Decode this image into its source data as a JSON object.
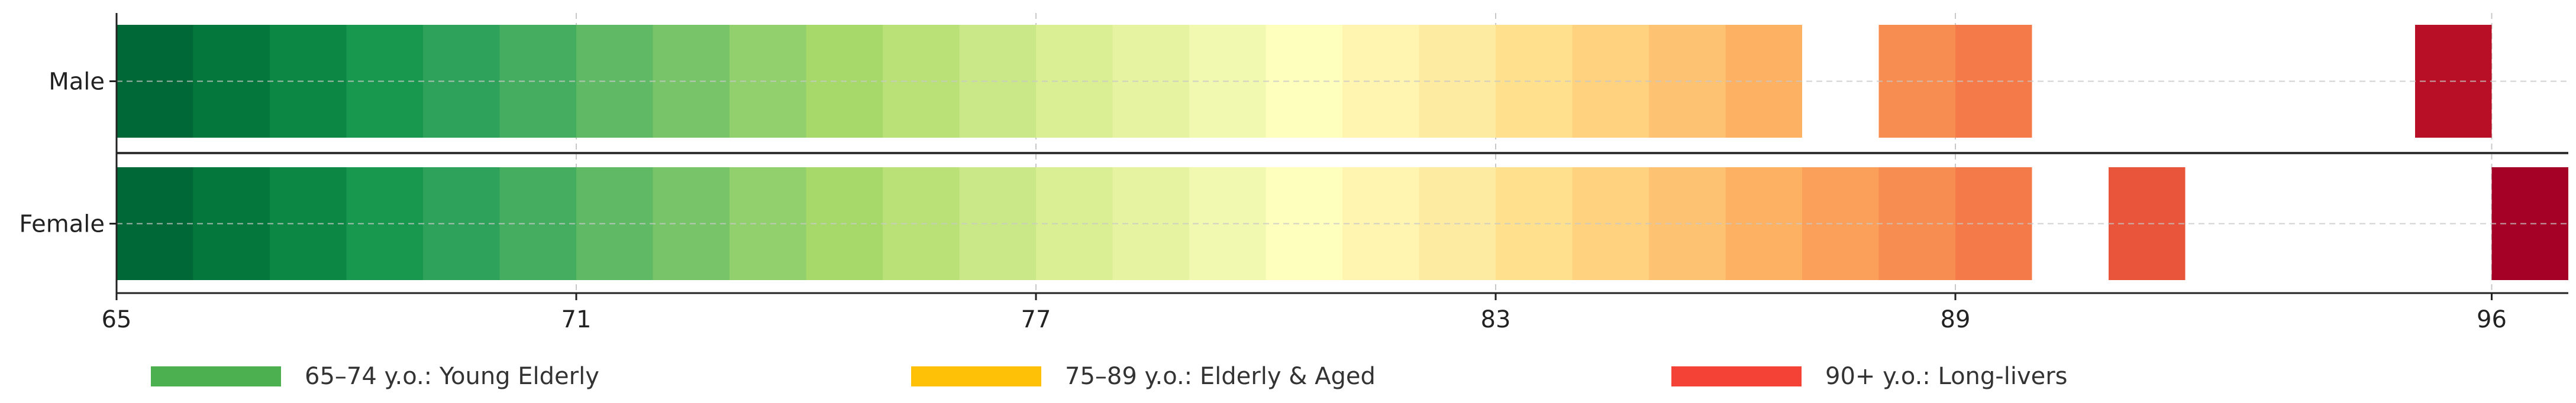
{
  "chart_data": {
    "type": "bar",
    "orientation": "horizontal",
    "title": "",
    "xlabel": "",
    "ylabel": "",
    "xlim": [
      65,
      97
    ],
    "x_ticks": [
      65,
      71,
      77,
      83,
      89,
      96
    ],
    "grid": true,
    "categories": [
      "Male",
      "Female"
    ],
    "series": [
      {
        "category": "Male",
        "segments": [
          {
            "start": 65,
            "end": 66,
            "color": "#006837"
          },
          {
            "start": 66,
            "end": 67,
            "color": "#04773d"
          },
          {
            "start": 67,
            "end": 68,
            "color": "#0c8744"
          },
          {
            "start": 68,
            "end": 69,
            "color": "#18974f"
          },
          {
            "start": 69,
            "end": 70,
            "color": "#2ea25a"
          },
          {
            "start": 70,
            "end": 71,
            "color": "#45ad60"
          },
          {
            "start": 71,
            "end": 72,
            "color": "#5fb965"
          },
          {
            "start": 72,
            "end": 73,
            "color": "#78c569"
          },
          {
            "start": 73,
            "end": 74,
            "color": "#91d06d"
          },
          {
            "start": 74,
            "end": 75,
            "color": "#a6d96a"
          },
          {
            "start": 75,
            "end": 76,
            "color": "#b9e178"
          },
          {
            "start": 76,
            "end": 77,
            "color": "#cbe888"
          },
          {
            "start": 77,
            "end": 78,
            "color": "#daee93"
          },
          {
            "start": 78,
            "end": 79,
            "color": "#e6f3a1"
          },
          {
            "start": 79,
            "end": 80,
            "color": "#f1f8b0"
          },
          {
            "start": 80,
            "end": 81,
            "color": "#fefebd"
          },
          {
            "start": 81,
            "end": 82,
            "color": "#fff5b0"
          },
          {
            "start": 82,
            "end": 83,
            "color": "#feeba2"
          },
          {
            "start": 83,
            "end": 84,
            "color": "#fee08d"
          },
          {
            "start": 84,
            "end": 85,
            "color": "#fed27f"
          },
          {
            "start": 85,
            "end": 86,
            "color": "#fdc272"
          },
          {
            "start": 86,
            "end": 87,
            "color": "#fdb163"
          },
          {
            "start": 88,
            "end": 89,
            "color": "#f88d51"
          },
          {
            "start": 89,
            "end": 90,
            "color": "#f47a49"
          },
          {
            "start": 95,
            "end": 96,
            "color": "#b80f26"
          }
        ]
      },
      {
        "category": "Female",
        "segments": [
          {
            "start": 65,
            "end": 66,
            "color": "#006837"
          },
          {
            "start": 66,
            "end": 67,
            "color": "#04773d"
          },
          {
            "start": 67,
            "end": 68,
            "color": "#0c8744"
          },
          {
            "start": 68,
            "end": 69,
            "color": "#18974f"
          },
          {
            "start": 69,
            "end": 70,
            "color": "#2ea25a"
          },
          {
            "start": 70,
            "end": 71,
            "color": "#45ad60"
          },
          {
            "start": 71,
            "end": 72,
            "color": "#5fb965"
          },
          {
            "start": 72,
            "end": 73,
            "color": "#78c569"
          },
          {
            "start": 73,
            "end": 74,
            "color": "#91d06d"
          },
          {
            "start": 74,
            "end": 75,
            "color": "#a6d96a"
          },
          {
            "start": 75,
            "end": 76,
            "color": "#b9e178"
          },
          {
            "start": 76,
            "end": 77,
            "color": "#cbe888"
          },
          {
            "start": 77,
            "end": 78,
            "color": "#daee93"
          },
          {
            "start": 78,
            "end": 79,
            "color": "#e6f3a1"
          },
          {
            "start": 79,
            "end": 80,
            "color": "#f1f8b0"
          },
          {
            "start": 80,
            "end": 81,
            "color": "#fefebd"
          },
          {
            "start": 81,
            "end": 82,
            "color": "#fff5b0"
          },
          {
            "start": 82,
            "end": 83,
            "color": "#feeba2"
          },
          {
            "start": 83,
            "end": 84,
            "color": "#fee08d"
          },
          {
            "start": 84,
            "end": 85,
            "color": "#fed27f"
          },
          {
            "start": 85,
            "end": 86,
            "color": "#fdc272"
          },
          {
            "start": 86,
            "end": 87,
            "color": "#fdb163"
          },
          {
            "start": 87,
            "end": 88,
            "color": "#fba05b"
          },
          {
            "start": 88,
            "end": 89,
            "color": "#f88d51"
          },
          {
            "start": 89,
            "end": 90,
            "color": "#f47a49"
          },
          {
            "start": 91,
            "end": 92,
            "color": "#e8553b"
          },
          {
            "start": 96,
            "end": 97,
            "color": "#a50026"
          }
        ]
      }
    ],
    "legend": [
      {
        "label": "65–74 y.o.: Young Elderly",
        "color": "#4caf50"
      },
      {
        "label": "75–89 y.o.: Elderly & Aged",
        "color": "#ffc107"
      },
      {
        "label": "90+ y.o.: Long-livers",
        "color": "#f44336"
      }
    ],
    "legend_position": "bottom"
  }
}
